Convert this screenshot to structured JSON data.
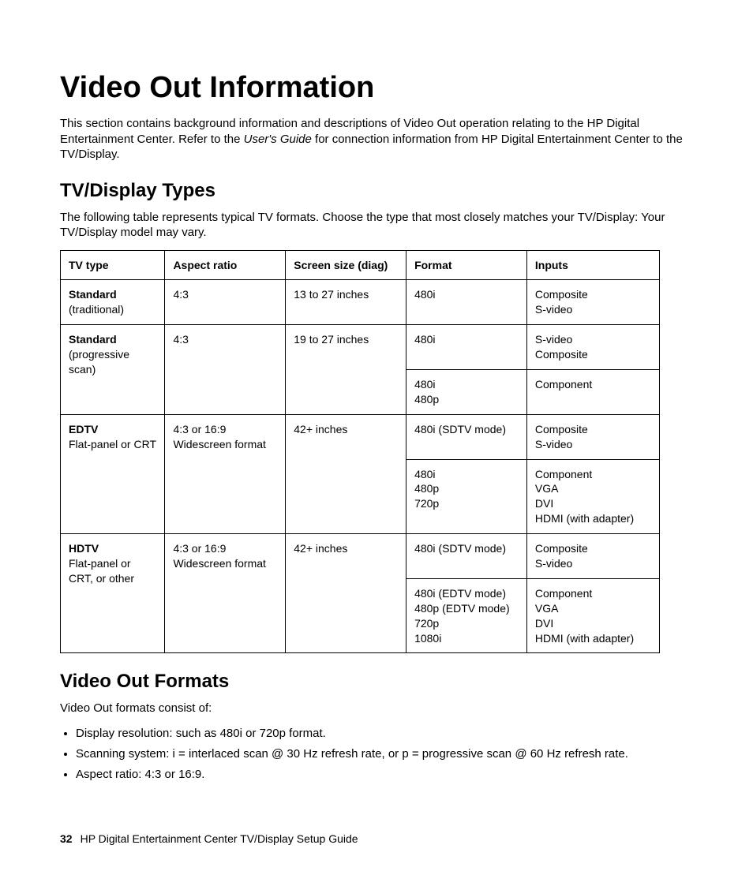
{
  "title": "Video Out Information",
  "intro_a": "This section contains background information and descriptions of Video Out operation relating to the HP Digital Entertainment Center. Refer to the ",
  "intro_italic": "User's Guide",
  "intro_b": " for connection information from HP Digital Entertainment Center to the TV/Display.",
  "section1": {
    "heading": "TV/Display Types",
    "para": "The following table represents typical TV formats. Choose the type that most closely matches your TV/Display: Your TV/Display model may vary."
  },
  "table": {
    "headers": [
      "TV type",
      "Aspect ratio",
      "Screen size (diag)",
      "Format",
      "Inputs"
    ],
    "rows": [
      {
        "tv_bold": "Standard",
        "tv_sub": "(traditional)",
        "aspect": "4:3",
        "size": "13 to 27 inches",
        "format": "480i",
        "inputs": "Composite\nS-video",
        "rowspan_tv": 1,
        "rowspan_as": 1,
        "rowspan_sz": 1
      },
      {
        "tv_bold": "Standard",
        "tv_sub": "(progressive scan)",
        "aspect": "4:3",
        "size": "19 to 27 inches",
        "format": "480i",
        "inputs": "S-video\nComposite",
        "rowspan_tv": 2,
        "rowspan_as": 2,
        "rowspan_sz": 2
      },
      {
        "format": "480i\n480p",
        "inputs": "Component"
      },
      {
        "tv_bold": "EDTV",
        "tv_sub": "Flat-panel or CRT",
        "aspect": "4:3 or 16:9\nWidescreen format",
        "size": "42+ inches",
        "format": "480i (SDTV mode)",
        "inputs": "Composite\nS-video",
        "rowspan_tv": 2,
        "rowspan_as": 2,
        "rowspan_sz": 2
      },
      {
        "format": "480i\n480p\n720p",
        "inputs": "Component\nVGA\nDVI\nHDMI (with adapter)"
      },
      {
        "tv_bold": "HDTV",
        "tv_sub": "Flat-panel or CRT, or other",
        "aspect": "4:3 or 16:9\nWidescreen format",
        "size": "42+ inches",
        "format": "480i (SDTV mode)",
        "inputs": "Composite\nS-video",
        "rowspan_tv": 2,
        "rowspan_as": 2,
        "rowspan_sz": 2
      },
      {
        "format": "480i (EDTV mode)\n480p (EDTV mode)\n720p\n1080i",
        "inputs": "Component\nVGA\nDVI\nHDMI (with adapter)"
      }
    ]
  },
  "section2": {
    "heading": "Video Out Formats",
    "para": "Video Out formats consist of:",
    "bullets": [
      "Display resolution: such as 480i or 720p format.",
      "Scanning system: i = interlaced scan @ 30 Hz refresh rate, or p = progressive scan @ 60 Hz refresh rate.",
      "Aspect ratio: 4:3 or 16:9."
    ]
  },
  "footer": {
    "page": "32",
    "text": "HP Digital Entertainment Center TV/Display Setup Guide"
  }
}
